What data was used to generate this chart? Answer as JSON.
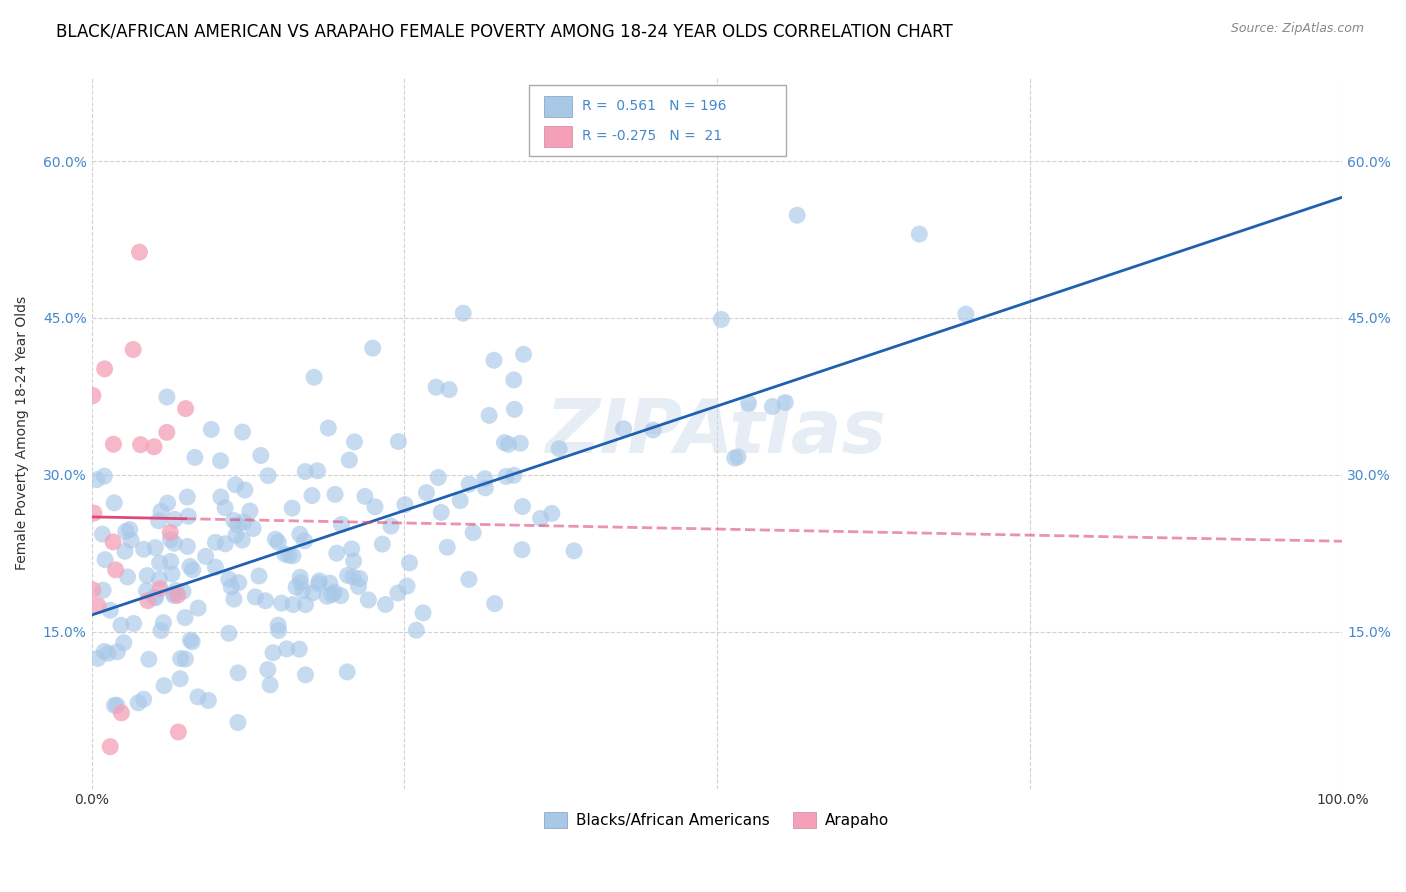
{
  "title": "BLACK/AFRICAN AMERICAN VS ARAPAHO FEMALE POVERTY AMONG 18-24 YEAR OLDS CORRELATION CHART",
  "source": "Source: ZipAtlas.com",
  "ylabel": "Female Poverty Among 18-24 Year Olds",
  "xlim": [
    0,
    1.0
  ],
  "ylim": [
    0,
    0.68
  ],
  "blue_R": 0.561,
  "blue_N": 196,
  "pink_R": -0.275,
  "pink_N": 21,
  "blue_scatter_color": "#a8c8e8",
  "blue_line_color": "#2060b0",
  "pink_scatter_color": "#f4a0b8",
  "pink_line_color": "#e04878",
  "legend_blue_label": "Blacks/African Americans",
  "legend_pink_label": "Arapaho",
  "ytick_labels": [
    "15.0%",
    "30.0%",
    "45.0%",
    "60.0%"
  ],
  "ytick_values": [
    0.15,
    0.3,
    0.45,
    0.6
  ],
  "blue_seed": 42,
  "pink_seed": 7,
  "title_fontsize": 12,
  "axis_label_fontsize": 10,
  "tick_fontsize": 10,
  "tick_color": "#4488cc",
  "grid_color": "#cccccc"
}
